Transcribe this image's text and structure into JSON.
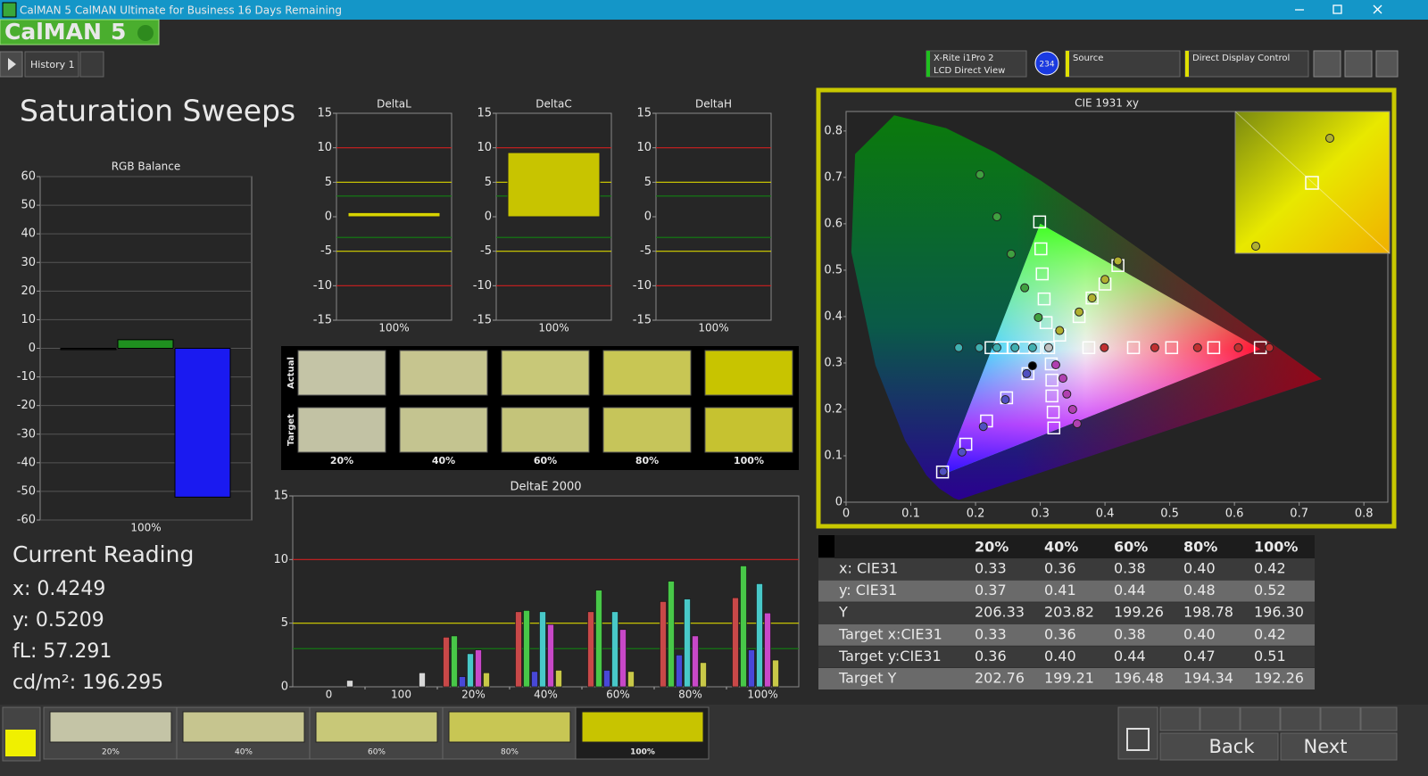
{
  "window": {
    "title": "CalMAN 5 CalMAN Ultimate for Business 16 Days Remaining"
  },
  "logo": {
    "name": "CalMAN",
    "version": "5"
  },
  "tabs": [
    "History 1"
  ],
  "meter": {
    "name": "X-Rite i1Pro 2",
    "mode": "LCD Direct View",
    "badge": "234"
  },
  "source": "Source",
  "display": "Direct Display Control",
  "page_title": "Saturation Sweeps",
  "rgb_balance": {
    "title": "RGB Balance",
    "categories": [
      "100%"
    ],
    "series": [
      {
        "color": "#101010",
        "values": [
          -0.3
        ]
      },
      {
        "color": "#1f8f1f",
        "values": [
          3
        ]
      },
      {
        "color": "#1a1af0",
        "values": [
          -52
        ]
      }
    ],
    "ylim": [
      -60,
      60
    ],
    "yticks": [
      -60,
      -50,
      -40,
      -30,
      -20,
      -10,
      0,
      10,
      20,
      30,
      40,
      50,
      60
    ],
    "grid": true
  },
  "delta_charts": [
    {
      "title": "DeltaL",
      "categories": [
        "100%"
      ],
      "values": [
        0.6
      ],
      "color": "#d8d400",
      "ylim": [
        -15,
        15
      ],
      "yticks": [
        -15,
        -10,
        -5,
        0,
        5,
        10,
        15
      ],
      "thresholds": [
        {
          "value": 10,
          "color": "#d02020"
        },
        {
          "value": -10,
          "color": "#d02020"
        },
        {
          "value": 5,
          "color": "#d8d400"
        },
        {
          "value": -5,
          "color": "#d8d400"
        },
        {
          "value": 3,
          "color": "#108010"
        },
        {
          "value": -3,
          "color": "#108010"
        }
      ]
    },
    {
      "title": "DeltaC",
      "categories": [
        "100%"
      ],
      "values": [
        9.3
      ],
      "color": "#c8c400",
      "ylim": [
        -15,
        15
      ],
      "yticks": [
        -15,
        -10,
        -5,
        0,
        5,
        10,
        15
      ],
      "thresholds": [
        {
          "value": 10,
          "color": "#d02020"
        },
        {
          "value": -10,
          "color": "#d02020"
        },
        {
          "value": 5,
          "color": "#d8d400"
        },
        {
          "value": -5,
          "color": "#d8d400"
        },
        {
          "value": 3,
          "color": "#108010"
        },
        {
          "value": -3,
          "color": "#108010"
        }
      ]
    },
    {
      "title": "DeltaH",
      "categories": [
        "100%"
      ],
      "values": [
        0
      ],
      "color": "#d8d400",
      "ylim": [
        -15,
        15
      ],
      "yticks": [
        -15,
        -10,
        -5,
        0,
        5,
        10,
        15
      ],
      "thresholds": [
        {
          "value": 10,
          "color": "#d02020"
        },
        {
          "value": -10,
          "color": "#d02020"
        },
        {
          "value": 5,
          "color": "#d8d400"
        },
        {
          "value": -5,
          "color": "#d8d400"
        },
        {
          "value": 3,
          "color": "#108010"
        },
        {
          "value": -3,
          "color": "#108010"
        }
      ]
    }
  ],
  "swatches": {
    "rows": [
      "Actual",
      "Target"
    ],
    "labels": [
      "20%",
      "40%",
      "60%",
      "80%",
      "100%"
    ],
    "actual_colors": [
      "#c4c4a6",
      "#c6c58f",
      "#c8c878",
      "#c8c654",
      "#c8c400"
    ],
    "target_colors": [
      "#c2c2a4",
      "#c4c490",
      "#c4c47a",
      "#c6c55a",
      "#c6c230"
    ]
  },
  "deltae": {
    "title": "DeltaE 2000",
    "categories": [
      "0",
      "100",
      "20%",
      "40%",
      "60%",
      "80%",
      "100%"
    ],
    "series": [
      {
        "color": "#c84848",
        "values": [
          null,
          null,
          3.9,
          5.9,
          5.9,
          6.7,
          7.0
        ]
      },
      {
        "color": "#48c848",
        "values": [
          null,
          null,
          4.0,
          6.0,
          7.6,
          8.3,
          9.5
        ]
      },
      {
        "color": "#4848d8",
        "values": [
          null,
          null,
          0.8,
          1.2,
          1.3,
          2.5,
          2.9
        ]
      },
      {
        "color": "#48c8c8",
        "values": [
          null,
          null,
          2.6,
          5.9,
          5.9,
          6.9,
          8.1
        ]
      },
      {
        "color": "#c848c8",
        "values": [
          null,
          null,
          2.9,
          4.9,
          4.5,
          4.0,
          5.8
        ]
      },
      {
        "color": "#c8c848",
        "values": [
          null,
          null,
          1.1,
          1.3,
          1.2,
          1.9,
          2.1
        ]
      },
      {
        "color": "#d8d8d8",
        "values": [
          0.5,
          1.1,
          null,
          null,
          null,
          null,
          null
        ]
      }
    ],
    "ylim": [
      0,
      15
    ],
    "yticks": [
      0,
      5,
      10,
      15
    ],
    "thresholds": [
      {
        "value": 10,
        "color": "#d02020"
      },
      {
        "value": 5,
        "color": "#d8d400"
      },
      {
        "value": 3,
        "color": "#108010"
      }
    ]
  },
  "cie": {
    "title": "CIE 1931 xy",
    "xlim": [
      0,
      0.837
    ],
    "ylim": [
      0,
      0.842
    ],
    "xticks": [
      0,
      0.1,
      0.2,
      0.3,
      0.4,
      0.5,
      0.6,
      0.7,
      0.8
    ],
    "yticks": [
      0,
      0.1,
      0.2,
      0.3,
      0.4,
      0.5,
      0.6,
      0.7,
      0.8
    ],
    "series": [
      {
        "color": "#c03030",
        "target_x": [
          0.375,
          0.444,
          0.503,
          0.568,
          0.64
        ],
        "target_y": [
          0.333,
          0.333,
          0.333,
          0.333,
          0.333
        ],
        "x": [
          0.399,
          0.477,
          0.543,
          0.606,
          0.654
        ],
        "y": [
          0.333,
          0.333,
          0.333,
          0.333,
          0.333
        ]
      },
      {
        "color": "#40a040",
        "target_x": [
          0.309,
          0.306,
          0.303,
          0.301,
          0.299
        ],
        "target_y": [
          0.387,
          0.438,
          0.492,
          0.546,
          0.604
        ],
        "x": [
          0.297,
          0.276,
          0.255,
          0.233,
          0.207
        ],
        "y": [
          0.398,
          0.462,
          0.535,
          0.615,
          0.706
        ]
      },
      {
        "color": "#5050c0",
        "target_x": [
          0.281,
          0.248,
          0.217,
          0.185,
          0.149
        ],
        "target_y": [
          0.277,
          0.225,
          0.175,
          0.125,
          0.065
        ],
        "x": [
          0.279,
          0.246,
          0.212,
          0.179,
          0.15
        ],
        "y": [
          0.277,
          0.221,
          0.163,
          0.108,
          0.066
        ]
      },
      {
        "color": "#40b0b0",
        "target_x": [
          0.292,
          0.275,
          0.258,
          0.241,
          0.224
        ],
        "target_y": [
          0.333,
          0.333,
          0.333,
          0.333,
          0.333
        ],
        "x": [
          0.288,
          0.261,
          0.233,
          0.206,
          0.174
        ],
        "y": [
          0.333,
          0.333,
          0.333,
          0.333,
          0.333
        ]
      },
      {
        "color": "#b040b0",
        "target_x": [
          0.317,
          0.318,
          0.318,
          0.32,
          0.321
        ],
        "target_y": [
          0.298,
          0.263,
          0.229,
          0.194,
          0.16
        ],
        "x": [
          0.324,
          0.335,
          0.341,
          0.35,
          0.357
        ],
        "y": [
          0.296,
          0.267,
          0.233,
          0.2,
          0.169
        ]
      },
      {
        "color": "#b0b030",
        "target_x": [
          0.33,
          0.36,
          0.38,
          0.4,
          0.42
        ],
        "target_y": [
          0.36,
          0.4,
          0.44,
          0.47,
          0.51
        ],
        "x": [
          0.33,
          0.36,
          0.38,
          0.4,
          0.42
        ],
        "y": [
          0.37,
          0.41,
          0.44,
          0.48,
          0.52
        ]
      },
      {
        "color": "#c0c0c0",
        "target_x": [
          0.313
        ],
        "target_y": [
          0.333
        ],
        "x": [
          0.313
        ],
        "y": [
          0.333
        ]
      },
      {
        "color": "#000000",
        "x": [
          0.288
        ],
        "y": [
          0.294
        ]
      }
    ]
  },
  "table": {
    "columns": [
      "20%",
      "40%",
      "60%",
      "80%",
      "100%"
    ],
    "rows": [
      {
        "label": "x: CIE31",
        "values": [
          "0.33",
          "0.36",
          "0.38",
          "0.40",
          "0.42"
        ]
      },
      {
        "label": "y: CIE31",
        "values": [
          "0.37",
          "0.41",
          "0.44",
          "0.48",
          "0.52"
        ]
      },
      {
        "label": "Y",
        "values": [
          "206.33",
          "203.82",
          "199.26",
          "198.78",
          "196.30"
        ]
      },
      {
        "label": "Target x:CIE31",
        "values": [
          "0.33",
          "0.36",
          "0.38",
          "0.40",
          "0.42"
        ]
      },
      {
        "label": "Target y:CIE31",
        "values": [
          "0.36",
          "0.40",
          "0.44",
          "0.47",
          "0.51"
        ]
      },
      {
        "label": "Target Y",
        "values": [
          "202.76",
          "199.21",
          "196.48",
          "194.34",
          "192.26"
        ]
      }
    ]
  },
  "current_reading": {
    "title": "Current Reading",
    "lines": [
      "x: 0.4249",
      "y: 0.5209",
      "fL: 57.291",
      "cd/m²: 196.295"
    ]
  },
  "patches": {
    "labels": [
      "20%",
      "40%",
      "60%",
      "80%",
      "100%"
    ],
    "colors": [
      "#c4c4a6",
      "#c6c58f",
      "#c8c878",
      "#c8c654",
      "#c8c400"
    ],
    "selected": 4
  },
  "nav": {
    "back": "Back",
    "next": "Next"
  }
}
